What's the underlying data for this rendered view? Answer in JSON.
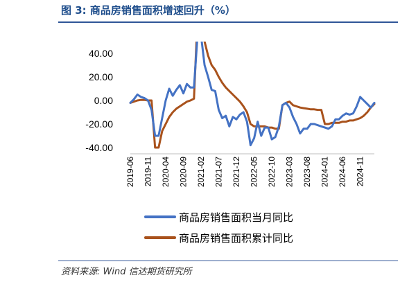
{
  "title": "图 3:  商品房销售面积增速回升（%）",
  "source": "资料来源:    Wind  信达期货研究所",
  "chart_data": {
    "type": "line",
    "title": "",
    "xlabel": "",
    "ylabel": "",
    "ylim": [
      -40,
      50
    ],
    "yticks": [
      -40,
      -20,
      0,
      20,
      40
    ],
    "ytick_labels": [
      "-40.00",
      "-20.00",
      "0.00",
      "20.00",
      "40.00"
    ],
    "xticks": [
      "2019-06",
      "2019-11",
      "2020-04",
      "2020-09",
      "2021-02",
      "2021-07",
      "2021-12",
      "2022-05",
      "2022-10",
      "2023-03",
      "2023-08",
      "2024-01",
      "2024-06",
      "2024-11"
    ],
    "x": [
      "2019-06",
      "2019-07",
      "2019-08",
      "2019-09",
      "2019-10",
      "2019-11",
      "2019-12",
      "2020-01",
      "2020-02",
      "2020-03",
      "2020-04",
      "2020-05",
      "2020-06",
      "2020-07",
      "2020-08",
      "2020-09",
      "2020-10",
      "2020-11",
      "2020-12",
      "2021-01",
      "2021-02",
      "2021-03",
      "2021-04",
      "2021-05",
      "2021-06",
      "2021-07",
      "2021-08",
      "2021-09",
      "2021-10",
      "2021-11",
      "2021-12",
      "2022-01",
      "2022-02",
      "2022-03",
      "2022-04",
      "2022-05",
      "2022-06",
      "2022-07",
      "2022-08",
      "2022-09",
      "2022-10",
      "2022-11",
      "2022-12",
      "2023-01",
      "2023-02",
      "2023-03",
      "2023-04",
      "2023-05",
      "2023-06",
      "2023-07",
      "2023-08",
      "2023-09",
      "2023-10",
      "2023-11",
      "2023-12",
      "2024-01",
      "2024-02",
      "2024-03",
      "2024-04",
      "2024-05",
      "2024-06",
      "2024-07",
      "2024-08",
      "2024-09",
      "2024-10",
      "2024-11",
      "2024-12",
      "2025-01",
      "2025-02",
      "2025-03"
    ],
    "legend_position": "bottom",
    "series": [
      {
        "name": "商品房销售面积当月同比",
        "color": "#4472c4",
        "values": [
          -2,
          1,
          5,
          3,
          2,
          0,
          -8,
          -30,
          -30,
          -15,
          0,
          10,
          4,
          9,
          13,
          6,
          14,
          11,
          11,
          55,
          55,
          30,
          20,
          9,
          8,
          -8,
          -15,
          -13,
          -22,
          -14,
          -16,
          -12,
          -10,
          -18,
          -38,
          -32,
          -18,
          -30,
          -23,
          -23,
          -33,
          -31,
          -22,
          -4,
          -2,
          -6,
          -14,
          -20,
          -28,
          -24,
          -24,
          -20,
          -20,
          -21,
          -22,
          -23,
          -24,
          -22,
          -16,
          -16,
          -13,
          -11,
          -12,
          -11,
          -5,
          3,
          0,
          -3,
          -6,
          -2
        ]
      },
      {
        "name": "商品房销售面积累计同比",
        "color": "#a9521c",
        "values": [
          -2,
          -1,
          0,
          0.5,
          0.5,
          0,
          0,
          -40,
          -40,
          -26,
          -20,
          -14,
          -10,
          -7,
          -5,
          -3,
          -1,
          0,
          1.5,
          70,
          70,
          50,
          38,
          30,
          26,
          20,
          15,
          11,
          8,
          5,
          2,
          -1,
          -5,
          -10,
          -20,
          -22,
          -22,
          -22,
          -22,
          -23,
          -23,
          -24,
          -24,
          -4,
          -2,
          -1,
          -4,
          -5,
          -6,
          -6.5,
          -7,
          -7.5,
          -7.5,
          -8,
          -8,
          -20,
          -20,
          -19,
          -19,
          -19,
          -18,
          -18,
          -17,
          -17,
          -16,
          -15,
          -13,
          -10,
          -6,
          -3
        ]
      }
    ]
  }
}
